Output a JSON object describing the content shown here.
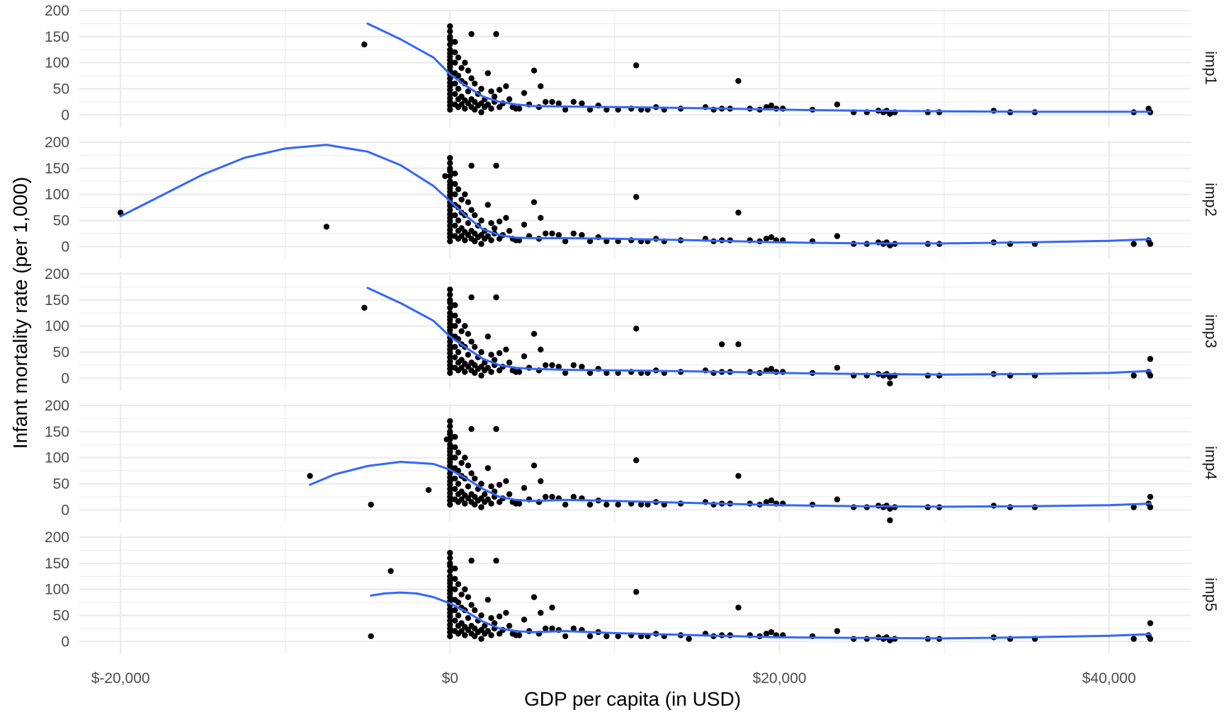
{
  "chart_data": {
    "type": "scatter",
    "xlabel": "GDP per capita (in USD)",
    "ylabel": "Infant mortality rate (per 1,000)",
    "xlim": [
      -22500,
      45000
    ],
    "ylim": [
      -24,
      204
    ],
    "x_ticks": [
      -20000,
      0,
      20000,
      40000
    ],
    "x_tick_labels": [
      "$-20,000",
      "$0",
      "$20,000",
      "$40,000"
    ],
    "y_ticks": [
      0,
      50,
      100,
      150,
      200
    ],
    "y_tick_labels": [
      "0",
      "50",
      "100",
      "150",
      "200"
    ],
    "grid": true,
    "smooth_color": "#3366ff",
    "point_color": "#000000",
    "base_points": [
      [
        0,
        170
      ],
      [
        0,
        160
      ],
      [
        0,
        150
      ],
      [
        0,
        145
      ],
      [
        0,
        135
      ],
      [
        0,
        125
      ],
      [
        0,
        118
      ],
      [
        0,
        112
      ],
      [
        0,
        105
      ],
      [
        0,
        98
      ],
      [
        0,
        92
      ],
      [
        0,
        85
      ],
      [
        0,
        78
      ],
      [
        0,
        70
      ],
      [
        0,
        62
      ],
      [
        0,
        55
      ],
      [
        0,
        48
      ],
      [
        0,
        40
      ],
      [
        0,
        32
      ],
      [
        0,
        25
      ],
      [
        0,
        18
      ],
      [
        0,
        10
      ],
      [
        300,
        140
      ],
      [
        300,
        120
      ],
      [
        300,
        100
      ],
      [
        300,
        80
      ],
      [
        300,
        60
      ],
      [
        300,
        40
      ],
      [
        300,
        20
      ],
      [
        500,
        110
      ],
      [
        500,
        75
      ],
      [
        500,
        50
      ],
      [
        500,
        30
      ],
      [
        500,
        15
      ],
      [
        700,
        90
      ],
      [
        700,
        65
      ],
      [
        700,
        35
      ],
      [
        700,
        20
      ],
      [
        900,
        100
      ],
      [
        900,
        60
      ],
      [
        900,
        28
      ],
      [
        900,
        12
      ],
      [
        1100,
        85
      ],
      [
        1100,
        45
      ],
      [
        1100,
        22
      ],
      [
        1300,
        155
      ],
      [
        1300,
        70
      ],
      [
        1300,
        30
      ],
      [
        1300,
        15
      ],
      [
        1500,
        60
      ],
      [
        1500,
        25
      ],
      [
        1500,
        10
      ],
      [
        1700,
        40
      ],
      [
        1700,
        18
      ],
      [
        1900,
        50
      ],
      [
        1900,
        22
      ],
      [
        1900,
        5
      ],
      [
        2100,
        30
      ],
      [
        2100,
        15
      ],
      [
        2300,
        80
      ],
      [
        2300,
        20
      ],
      [
        2500,
        45
      ],
      [
        2500,
        12
      ],
      [
        2700,
        35
      ],
      [
        2700,
        25
      ],
      [
        2800,
        155
      ],
      [
        3000,
        48
      ],
      [
        3000,
        15
      ],
      [
        3200,
        22
      ],
      [
        3400,
        55
      ],
      [
        3600,
        30
      ],
      [
        3800,
        15
      ],
      [
        4000,
        12
      ],
      [
        4200,
        12
      ],
      [
        4500,
        42
      ],
      [
        4800,
        20
      ],
      [
        5100,
        85
      ],
      [
        5400,
        15
      ],
      [
        5500,
        55
      ],
      [
        5800,
        25
      ],
      [
        6200,
        25
      ],
      [
        6600,
        22
      ],
      [
        7000,
        10
      ],
      [
        7500,
        25
      ],
      [
        8000,
        22
      ],
      [
        8500,
        10
      ],
      [
        9000,
        18
      ],
      [
        9500,
        10
      ],
      [
        10200,
        10
      ],
      [
        11000,
        12
      ],
      [
        11300,
        95
      ],
      [
        11600,
        10
      ],
      [
        12000,
        10
      ],
      [
        12500,
        15
      ],
      [
        13000,
        10
      ],
      [
        14000,
        12
      ],
      [
        15500,
        15
      ],
      [
        16000,
        10
      ],
      [
        16500,
        12
      ],
      [
        17000,
        12
      ],
      [
        17500,
        65
      ],
      [
        18200,
        12
      ],
      [
        18800,
        10
      ],
      [
        19200,
        15
      ],
      [
        19500,
        18
      ],
      [
        19800,
        12
      ],
      [
        20200,
        12
      ],
      [
        22000,
        10
      ],
      [
        23500,
        20
      ],
      [
        24500,
        5
      ],
      [
        25300,
        5
      ],
      [
        26000,
        8
      ],
      [
        26300,
        5
      ],
      [
        26500,
        8
      ],
      [
        26700,
        2
      ],
      [
        27000,
        5
      ],
      [
        29000,
        5
      ],
      [
        29700,
        5
      ],
      [
        33000,
        8
      ],
      [
        34000,
        5
      ],
      [
        35500,
        5
      ],
      [
        41500,
        5
      ],
      [
        42400,
        12
      ],
      [
        42500,
        5
      ]
    ],
    "series": [
      {
        "name": "imp1",
        "points": [
          [
            -5200,
            135
          ]
        ],
        "smooth": [
          [
            -5000,
            175
          ],
          [
            -3000,
            145
          ],
          [
            -1000,
            110
          ],
          [
            0,
            78
          ],
          [
            1000,
            55
          ],
          [
            2000,
            35
          ],
          [
            3000,
            25
          ],
          [
            4000,
            20
          ],
          [
            5000,
            17
          ],
          [
            7000,
            16
          ],
          [
            10000,
            15
          ],
          [
            15000,
            13
          ],
          [
            20000,
            10
          ],
          [
            25000,
            8
          ],
          [
            30000,
            7
          ],
          [
            35000,
            6
          ],
          [
            40000,
            6
          ],
          [
            42500,
            6
          ]
        ]
      },
      {
        "name": "imp2",
        "points": [
          [
            -20000,
            65
          ],
          [
            -7500,
            38
          ],
          [
            -300,
            135
          ]
        ],
        "smooth": [
          [
            -20000,
            58
          ],
          [
            -17500,
            98
          ],
          [
            -15000,
            138
          ],
          [
            -12500,
            170
          ],
          [
            -10000,
            188
          ],
          [
            -7500,
            195
          ],
          [
            -5000,
            182
          ],
          [
            -3000,
            156
          ],
          [
            -1000,
            116
          ],
          [
            0,
            87
          ],
          [
            1000,
            58
          ],
          [
            2000,
            33
          ],
          [
            3000,
            22
          ],
          [
            4000,
            17
          ],
          [
            5000,
            16
          ],
          [
            7000,
            16
          ],
          [
            10000,
            15
          ],
          [
            15000,
            12
          ],
          [
            20000,
            8
          ],
          [
            25000,
            6
          ],
          [
            30000,
            6
          ],
          [
            35000,
            8
          ],
          [
            40000,
            11
          ],
          [
            42500,
            14
          ]
        ]
      },
      {
        "name": "imp3",
        "points": [
          [
            -5200,
            135
          ],
          [
            16500,
            65
          ],
          [
            26700,
            -10
          ],
          [
            42500,
            37
          ]
        ],
        "smooth": [
          [
            -5000,
            173
          ],
          [
            -3000,
            144
          ],
          [
            -1000,
            110
          ],
          [
            0,
            80
          ],
          [
            1000,
            58
          ],
          [
            2000,
            37
          ],
          [
            3000,
            25
          ],
          [
            4000,
            20
          ],
          [
            5000,
            18
          ],
          [
            7000,
            16
          ],
          [
            10000,
            15
          ],
          [
            15000,
            13
          ],
          [
            20000,
            10
          ],
          [
            25000,
            8
          ],
          [
            30000,
            7
          ],
          [
            35000,
            8
          ],
          [
            40000,
            10
          ],
          [
            42500,
            14
          ]
        ]
      },
      {
        "name": "imp4",
        "points": [
          [
            -8500,
            65
          ],
          [
            -4800,
            10
          ],
          [
            -1300,
            38
          ],
          [
            -200,
            135
          ],
          [
            26700,
            -20
          ],
          [
            42500,
            25
          ]
        ],
        "smooth": [
          [
            -8500,
            48
          ],
          [
            -7000,
            68
          ],
          [
            -5000,
            84
          ],
          [
            -3000,
            92
          ],
          [
            -1000,
            88
          ],
          [
            0,
            77
          ],
          [
            1000,
            60
          ],
          [
            2000,
            40
          ],
          [
            3000,
            25
          ],
          [
            4000,
            19
          ],
          [
            5000,
            17
          ],
          [
            7000,
            19
          ],
          [
            10000,
            17
          ],
          [
            15000,
            13
          ],
          [
            20000,
            9
          ],
          [
            25000,
            7
          ],
          [
            30000,
            6
          ],
          [
            35000,
            7
          ],
          [
            40000,
            9
          ],
          [
            42500,
            12
          ]
        ]
      },
      {
        "name": "imp5",
        "points": [
          [
            -4800,
            10
          ],
          [
            -3600,
            135
          ],
          [
            6200,
            65
          ],
          [
            14500,
            5
          ],
          [
            42500,
            35
          ]
        ],
        "smooth": [
          [
            -4800,
            88
          ],
          [
            -4000,
            92
          ],
          [
            -3000,
            94
          ],
          [
            -2000,
            92
          ],
          [
            -1000,
            85
          ],
          [
            0,
            73
          ],
          [
            1000,
            57
          ],
          [
            2000,
            38
          ],
          [
            3000,
            25
          ],
          [
            4000,
            20
          ],
          [
            5000,
            18
          ],
          [
            7000,
            20
          ],
          [
            10000,
            16
          ],
          [
            15000,
            12
          ],
          [
            20000,
            8
          ],
          [
            25000,
            7
          ],
          [
            30000,
            6
          ],
          [
            35000,
            8
          ],
          [
            40000,
            11
          ],
          [
            42500,
            14
          ]
        ]
      }
    ]
  }
}
